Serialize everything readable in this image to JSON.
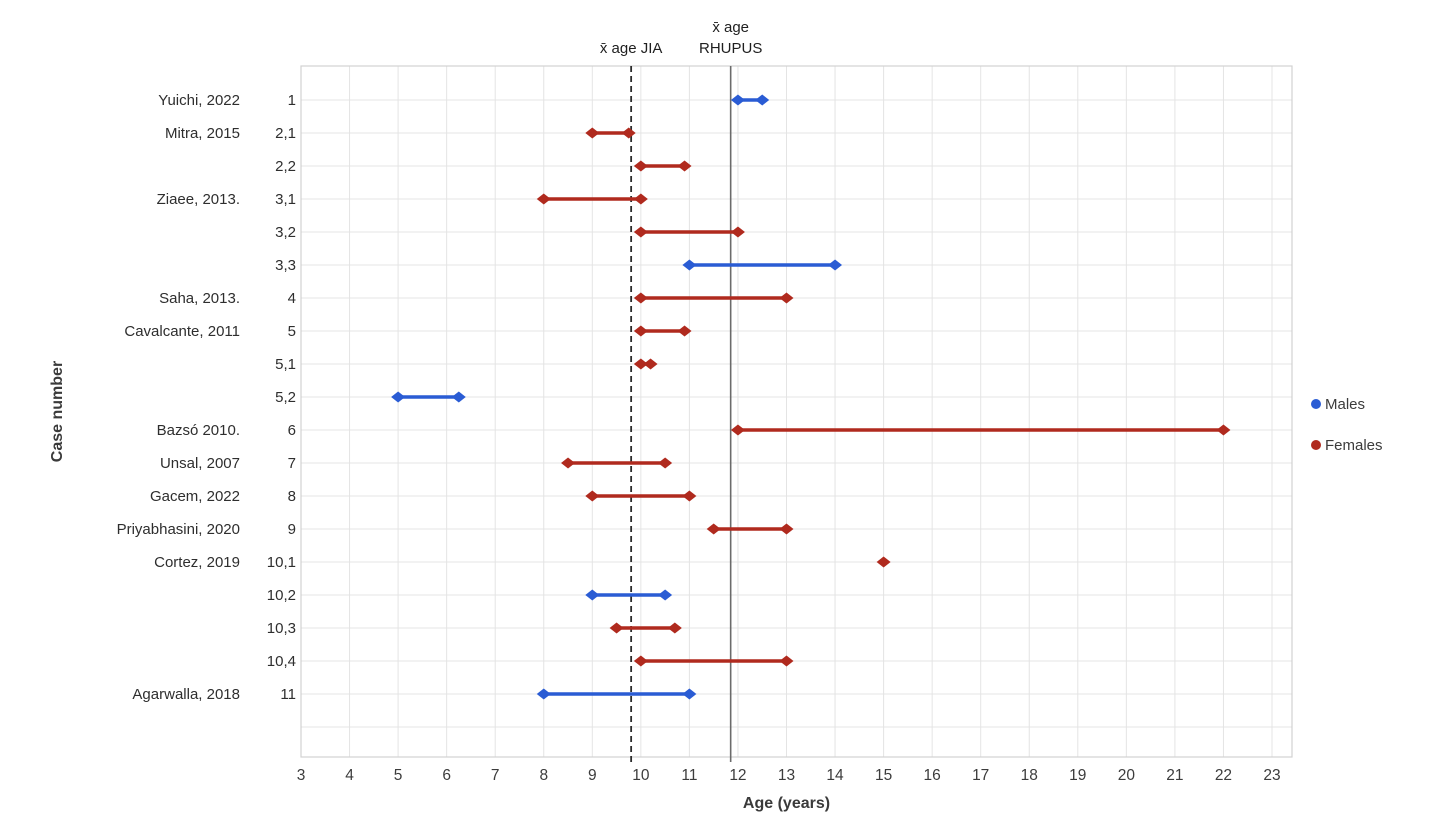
{
  "figure": {
    "x_axis_title": "Age (years)",
    "y_axis_title": "Case number"
  },
  "legend": {
    "position": "right",
    "items": [
      {
        "label": "Males",
        "group": "Males"
      },
      {
        "label": "Females",
        "group": "Females"
      }
    ]
  },
  "chart_data": {
    "type": "dumbbell-range",
    "title": "",
    "xlabel": "Age (years)",
    "ylabel": "Case number",
    "x_axis": {
      "min": 3,
      "max": 23,
      "tick_step": 1
    },
    "grid": true,
    "colors": {
      "Males": "#2a5cd4",
      "Females": "#b02a1e"
    },
    "reference_lines": [
      {
        "name": "mean-age-jia",
        "label_lines": [
          "x̄ age JIA"
        ],
        "value": 9.8,
        "style": "dashed",
        "color": "#2b2b2b"
      },
      {
        "name": "mean-age-rhupus",
        "label_lines": [
          "x̄ age",
          "RHUPUS"
        ],
        "value": 11.85,
        "style": "solid",
        "color": "#6b6b6b"
      }
    ],
    "rows": [
      {
        "author": "Yuichi, 2022",
        "case": "1",
        "group": "Males",
        "age_start": 12,
        "age_end": 12.5
      },
      {
        "author": "Mitra, 2015",
        "case": "2,1",
        "group": "Females",
        "age_start": 9,
        "age_end": 9.75
      },
      {
        "author": "",
        "case": "2,2",
        "group": "Females",
        "age_start": 10,
        "age_end": 10.9
      },
      {
        "author": "Ziaee, 2013.",
        "case": "3,1",
        "group": "Females",
        "age_start": 8,
        "age_end": 10
      },
      {
        "author": "",
        "case": "3,2",
        "group": "Females",
        "age_start": 10,
        "age_end": 12
      },
      {
        "author": "",
        "case": "3,3",
        "group": "Males",
        "age_start": 11,
        "age_end": 14
      },
      {
        "author": "Saha, 2013.",
        "case": "4",
        "group": "Females",
        "age_start": 10,
        "age_end": 13
      },
      {
        "author": "Cavalcante, 2011",
        "case": "5",
        "group": "Females",
        "age_start": 10,
        "age_end": 10.9
      },
      {
        "author": "",
        "case": "5,1",
        "group": "Females",
        "age_start": 10,
        "age_end": 10.2
      },
      {
        "author": "",
        "case": "5,2",
        "group": "Males",
        "age_start": 5,
        "age_end": 6.25
      },
      {
        "author": "Bazsó 2010.",
        "case": "6",
        "group": "Females",
        "age_start": 12,
        "age_end": 22
      },
      {
        "author": "Unsal, 2007",
        "case": "7",
        "group": "Females",
        "age_start": 8.5,
        "age_end": 10.5
      },
      {
        "author": "Gacem, 2022",
        "case": "8",
        "group": "Females",
        "age_start": 9,
        "age_end": 11
      },
      {
        "author": "Priyabhasini, 2020",
        "case": "9",
        "group": "Females",
        "age_start": 11.5,
        "age_end": 13
      },
      {
        "author": "Cortez, 2019",
        "case": "10,1",
        "group": "Females",
        "age_start": 15,
        "age_end": 15
      },
      {
        "author": "",
        "case": "10,2",
        "group": "Males",
        "age_start": 9,
        "age_end": 10.5
      },
      {
        "author": "",
        "case": "10,3",
        "group": "Females",
        "age_start": 9.5,
        "age_end": 10.7
      },
      {
        "author": "",
        "case": "10,4",
        "group": "Females",
        "age_start": 10,
        "age_end": 13
      },
      {
        "author": "Agarwalla, 2018",
        "case": "11",
        "group": "Males",
        "age_start": 8,
        "age_end": 11
      }
    ]
  }
}
